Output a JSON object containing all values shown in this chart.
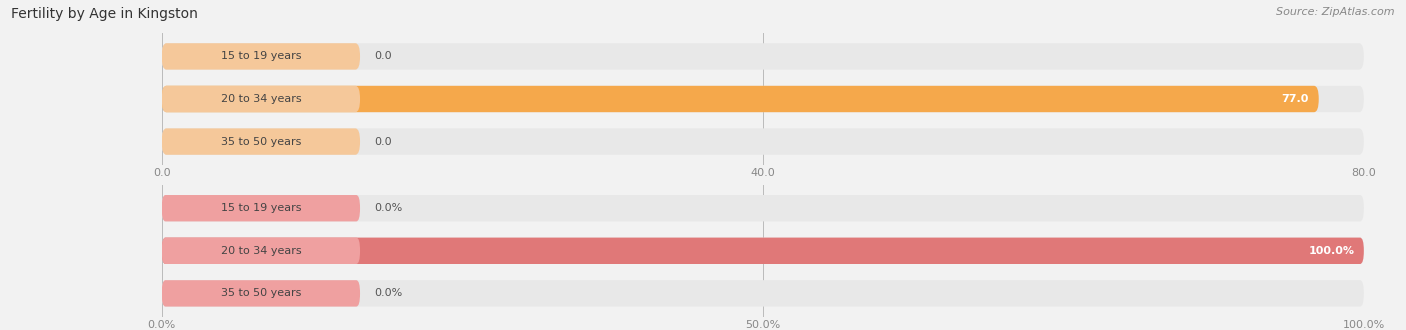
{
  "title": "Fertility by Age in Kingston",
  "source": "Source: ZipAtlas.com",
  "top_chart": {
    "categories": [
      "15 to 19 years",
      "20 to 34 years",
      "35 to 50 years"
    ],
    "values": [
      0.0,
      77.0,
      0.0
    ],
    "max_val": 80.0,
    "xticks": [
      0.0,
      40.0,
      80.0
    ],
    "bar_color": "#F5A84B",
    "bar_bg_color": "#E8E8E8",
    "label_pill_color": "#F5C89A",
    "label_text_color": "#555555",
    "value_label_color_dark": "#555555",
    "value_label_color_light": "white"
  },
  "bottom_chart": {
    "categories": [
      "15 to 19 years",
      "20 to 34 years",
      "35 to 50 years"
    ],
    "values": [
      0.0,
      100.0,
      0.0
    ],
    "max_val": 100.0,
    "xticks": [
      0.0,
      50.0,
      100.0
    ],
    "bar_color": "#E07878",
    "bar_bg_color": "#E8E8E8",
    "label_pill_color": "#EFA0A0",
    "label_text_color": "#555555",
    "value_label_color_dark": "#555555",
    "value_label_color_light": "white"
  },
  "fig_bg_color": "#F2F2F2",
  "title_fontsize": 10,
  "label_fontsize": 8,
  "tick_fontsize": 8,
  "source_fontsize": 8
}
